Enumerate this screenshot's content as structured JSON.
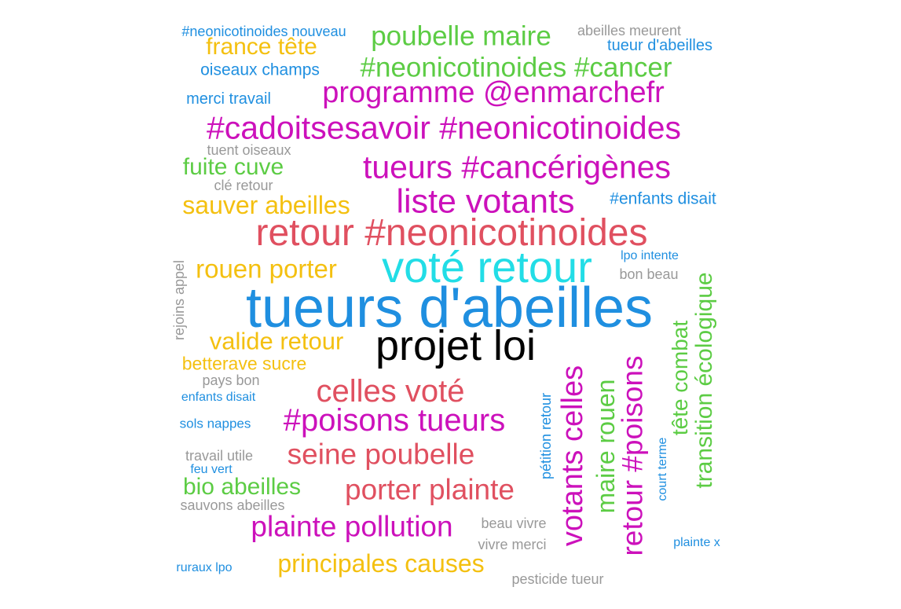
{
  "colors": {
    "blue": "#1f8fe0",
    "cyan": "#22dde6",
    "magenta": "#cc11bb",
    "red": "#e05060",
    "green": "#5ccc44",
    "yellow": "#f4c010",
    "gray": "#999999",
    "black": "#000000"
  },
  "words": [
    {
      "text": "tueurs d'abeilles",
      "color": "blue"
    },
    {
      "text": "voté retour",
      "color": "cyan"
    },
    {
      "text": "projet loi",
      "color": "black"
    },
    {
      "text": "retour #neonicotinoides",
      "color": "red"
    },
    {
      "text": "#cadoitsesavoir #neonicotinoides",
      "color": "magenta"
    },
    {
      "text": "tueurs #cancérigènes",
      "color": "magenta"
    },
    {
      "text": "liste votants",
      "color": "magenta"
    },
    {
      "text": "programme @enmarchefr",
      "color": "magenta"
    },
    {
      "text": "#neonicotinoides #cancer",
      "color": "green"
    },
    {
      "text": "poubelle maire",
      "color": "green"
    },
    {
      "text": "#neonicotinoides nouveau",
      "color": "blue"
    },
    {
      "text": "abeilles meurent",
      "color": "gray"
    },
    {
      "text": "france tête",
      "color": "yellow"
    },
    {
      "text": "tueur d'abeilles",
      "color": "blue"
    },
    {
      "text": "oiseaux champs",
      "color": "blue"
    },
    {
      "text": "merci travail",
      "color": "blue"
    },
    {
      "text": "tuent oiseaux",
      "color": "gray"
    },
    {
      "text": "fuite cuve",
      "color": "green"
    },
    {
      "text": "clé retour",
      "color": "gray"
    },
    {
      "text": "sauver abeilles",
      "color": "yellow"
    },
    {
      "text": "#enfants disait",
      "color": "blue"
    },
    {
      "text": "rouen porter",
      "color": "yellow"
    },
    {
      "text": "lpo intente",
      "color": "blue"
    },
    {
      "text": "bon beau",
      "color": "gray"
    },
    {
      "text": "rejoins appel",
      "color": "gray"
    },
    {
      "text": "valide retour",
      "color": "yellow"
    },
    {
      "text": "betterave sucre",
      "color": "yellow"
    },
    {
      "text": "pays bon",
      "color": "gray"
    },
    {
      "text": "enfants disait",
      "color": "blue"
    },
    {
      "text": "celles voté",
      "color": "red"
    },
    {
      "text": "#poisons tueurs",
      "color": "magenta"
    },
    {
      "text": "sols nappes",
      "color": "blue"
    },
    {
      "text": "seine poubelle",
      "color": "red"
    },
    {
      "text": "travail utile",
      "color": "gray"
    },
    {
      "text": "feu vert",
      "color": "blue"
    },
    {
      "text": "bio abeilles",
      "color": "green"
    },
    {
      "text": "porter plainte",
      "color": "red"
    },
    {
      "text": "sauvons abeilles",
      "color": "gray"
    },
    {
      "text": "plainte pollution",
      "color": "magenta"
    },
    {
      "text": "beau vivre",
      "color": "gray"
    },
    {
      "text": "vivre merci",
      "color": "gray"
    },
    {
      "text": "ruraux lpo",
      "color": "blue"
    },
    {
      "text": "principales causes",
      "color": "yellow"
    },
    {
      "text": "pesticide tueur",
      "color": "gray"
    },
    {
      "text": "plainte x",
      "color": "blue"
    },
    {
      "text": "pétition retour",
      "color": "blue"
    },
    {
      "text": "votants celles",
      "color": "magenta"
    },
    {
      "text": "maire rouen",
      "color": "green"
    },
    {
      "text": "retour #poisons",
      "color": "magenta"
    },
    {
      "text": "court terme",
      "color": "blue"
    },
    {
      "text": "tête combat",
      "color": "green"
    },
    {
      "text": "transition écologique",
      "color": "green"
    }
  ]
}
